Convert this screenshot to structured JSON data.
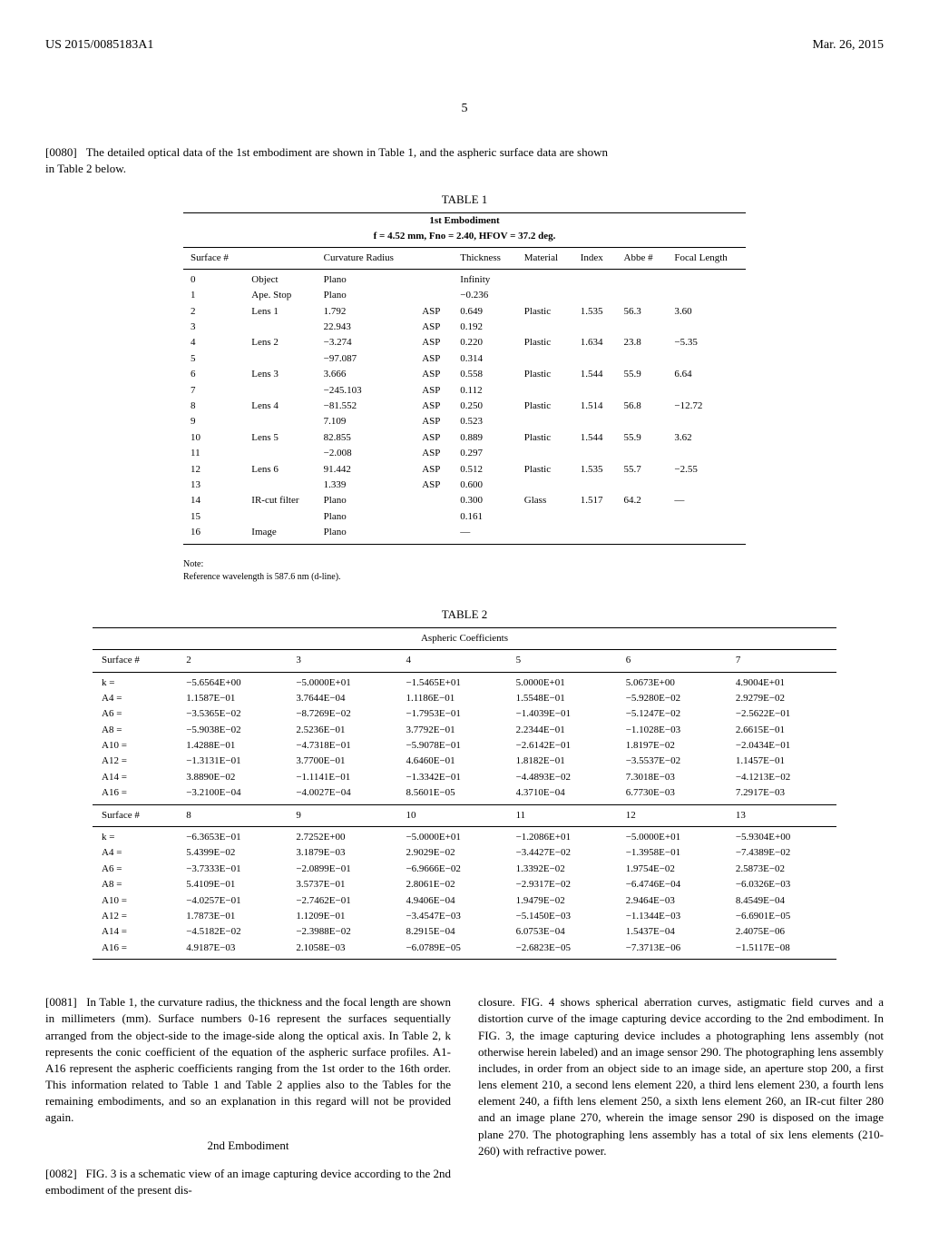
{
  "header": {
    "left": "US 2015/0085183A1",
    "right": "Mar. 26, 2015"
  },
  "page_number": "5",
  "para_0080": {
    "num": "[0080]",
    "text": "The detailed optical data of the 1st embodiment are shown in Table 1, and the aspheric surface data are shown in Table 2 below."
  },
  "table1": {
    "caption": "TABLE 1",
    "sub1": "1st Embodiment",
    "sub2": "f = 4.52 mm, Fno = 2.40, HFOV = 37.2 deg.",
    "columns": [
      "Surface #",
      "",
      "Curvature Radius",
      "",
      "Thickness",
      "Material",
      "Index",
      "Abbe #",
      "Focal Length"
    ],
    "rows": [
      [
        "0",
        "Object",
        "Plano",
        "",
        "Infinity",
        "",
        "",
        "",
        ""
      ],
      [
        "1",
        "Ape. Stop",
        "Plano",
        "",
        "−0.236",
        "",
        "",
        "",
        ""
      ],
      [
        "2",
        "Lens 1",
        "1.792",
        "ASP",
        "0.649",
        "Plastic",
        "1.535",
        "56.3",
        "3.60"
      ],
      [
        "3",
        "",
        "22.943",
        "ASP",
        "0.192",
        "",
        "",
        "",
        ""
      ],
      [
        "4",
        "Lens 2",
        "−3.274",
        "ASP",
        "0.220",
        "Plastic",
        "1.634",
        "23.8",
        "−5.35"
      ],
      [
        "5",
        "",
        "−97.087",
        "ASP",
        "0.314",
        "",
        "",
        "",
        ""
      ],
      [
        "6",
        "Lens 3",
        "3.666",
        "ASP",
        "0.558",
        "Plastic",
        "1.544",
        "55.9",
        "6.64"
      ],
      [
        "7",
        "",
        "−245.103",
        "ASP",
        "0.112",
        "",
        "",
        "",
        ""
      ],
      [
        "8",
        "Lens 4",
        "−81.552",
        "ASP",
        "0.250",
        "Plastic",
        "1.514",
        "56.8",
        "−12.72"
      ],
      [
        "9",
        "",
        "7.109",
        "ASP",
        "0.523",
        "",
        "",
        "",
        ""
      ],
      [
        "10",
        "Lens 5",
        "82.855",
        "ASP",
        "0.889",
        "Plastic",
        "1.544",
        "55.9",
        "3.62"
      ],
      [
        "11",
        "",
        "−2.008",
        "ASP",
        "0.297",
        "",
        "",
        "",
        ""
      ],
      [
        "12",
        "Lens 6",
        "91.442",
        "ASP",
        "0.512",
        "Plastic",
        "1.535",
        "55.7",
        "−2.55"
      ],
      [
        "13",
        "",
        "1.339",
        "ASP",
        "0.600",
        "",
        "",
        "",
        ""
      ],
      [
        "14",
        "IR-cut filter",
        "Plano",
        "",
        "0.300",
        "Glass",
        "1.517",
        "64.2",
        "—"
      ],
      [
        "15",
        "",
        "Plano",
        "",
        "0.161",
        "",
        "",
        "",
        ""
      ],
      [
        "16",
        "Image",
        "Plano",
        "",
        "—",
        "",
        "",
        "",
        ""
      ]
    ],
    "note1": "Note:",
    "note2": "Reference wavelength is 587.6 nm (d-line)."
  },
  "table2": {
    "caption": "TABLE 2",
    "sub": "Aspheric Coefficients",
    "header1": [
      "Surface #",
      "2",
      "3",
      "4",
      "5",
      "6",
      "7"
    ],
    "group1_rows": [
      [
        "k =",
        "−5.6564E+00",
        "−5.0000E+01",
        "−1.5465E+01",
        "5.0000E+01",
        "5.0673E+00",
        "4.9004E+01"
      ],
      [
        "A4 =",
        "1.1587E−01",
        "3.7644E−04",
        "1.1186E−01",
        "1.5548E−01",
        "−5.9280E−02",
        "2.9279E−02"
      ],
      [
        "A6 =",
        "−3.5365E−02",
        "−8.7269E−02",
        "−1.7953E−01",
        "−1.4039E−01",
        "−5.1247E−02",
        "−2.5622E−01"
      ],
      [
        "A8 =",
        "−5.9038E−02",
        "2.5236E−01",
        "3.7792E−01",
        "2.2344E−01",
        "−1.1028E−03",
        "2.6615E−01"
      ],
      [
        "A10 =",
        "1.4288E−01",
        "−4.7318E−01",
        "−5.9078E−01",
        "−2.6142E−01",
        "1.8197E−02",
        "−2.0434E−01"
      ],
      [
        "A12 =",
        "−1.3131E−01",
        "3.7700E−01",
        "4.6460E−01",
        "1.8182E−01",
        "−3.5537E−02",
        "1.1457E−01"
      ],
      [
        "A14 =",
        "3.8890E−02",
        "−1.1141E−01",
        "−1.3342E−01",
        "−4.4893E−02",
        "7.3018E−03",
        "−4.1213E−02"
      ],
      [
        "A16 =",
        "−3.2100E−04",
        "−4.0027E−04",
        "8.5601E−05",
        "4.3710E−04",
        "6.7730E−03",
        "7.2917E−03"
      ]
    ],
    "header2": [
      "Surface #",
      "8",
      "9",
      "10",
      "11",
      "12",
      "13"
    ],
    "group2_rows": [
      [
        "k =",
        "−6.3653E−01",
        "2.7252E+00",
        "−5.0000E+01",
        "−1.2086E+01",
        "−5.0000E+01",
        "−5.9304E+00"
      ],
      [
        "A4 =",
        "5.4399E−02",
        "3.1879E−03",
        "2.9029E−02",
        "−3.4427E−02",
        "−1.3958E−01",
        "−7.4389E−02"
      ],
      [
        "A6 =",
        "−3.7333E−01",
        "−2.0899E−01",
        "−6.9666E−02",
        "1.3392E−02",
        "1.9754E−02",
        "2.5873E−02"
      ],
      [
        "A8 =",
        "5.4109E−01",
        "3.5737E−01",
        "2.8061E−02",
        "−2.9317E−02",
        "−6.4746E−04",
        "−6.0326E−03"
      ],
      [
        "A10 =",
        "−4.0257E−01",
        "−2.7462E−01",
        "4.9406E−04",
        "1.9479E−02",
        "2.9464E−03",
        "8.4549E−04"
      ],
      [
        "A12 =",
        "1.7873E−01",
        "1.1209E−01",
        "−3.4547E−03",
        "−5.1450E−03",
        "−1.1344E−03",
        "−6.6901E−05"
      ],
      [
        "A14 =",
        "−4.5182E−02",
        "−2.3988E−02",
        "8.2915E−04",
        "6.0753E−04",
        "1.5437E−04",
        "2.4075E−06"
      ],
      [
        "A16 =",
        "4.9187E−03",
        "2.1058E−03",
        "−6.0789E−05",
        "−2.6823E−05",
        "−7.3713E−06",
        "−1.5117E−08"
      ]
    ]
  },
  "para_0081": {
    "num": "[0081]",
    "text": "In Table 1, the curvature radius, the thickness and the focal length are shown in millimeters (mm). Surface numbers 0-16 represent the surfaces sequentially arranged from the object-side to the image-side along the optical axis. In Table 2, k represents the conic coefficient of the equation of the aspheric surface profiles. A1-A16 represent the aspheric coefficients ranging from the 1st order to the 16th order. This information related to Table 1 and Table 2 applies also to the Tables for the remaining embodiments, and so an explanation in this regard will not be provided again."
  },
  "embodiment2_heading": "2nd Embodiment",
  "para_0082_left": {
    "num": "[0082]",
    "text": "FIG. 3 is a schematic view of an image capturing device according to the 2nd embodiment of the present dis-"
  },
  "para_0082_right": "closure. FIG. 4 shows spherical aberration curves, astigmatic field curves and a distortion curve of the image capturing device according to the 2nd embodiment. In FIG. 3, the image capturing device includes a photographing lens assembly (not otherwise herein labeled) and an image sensor 290. The photographing lens assembly includes, in order from an object side to an image side, an aperture stop 200, a first lens element 210, a second lens element 220, a third lens element 230, a fourth lens element 240, a fifth lens element 250, a sixth lens element 260, an IR-cut filter 280 and an image plane 270, wherein the image sensor 290 is disposed on the image plane 270. The photographing lens assembly has a total of six lens elements (210-260) with refractive power."
}
